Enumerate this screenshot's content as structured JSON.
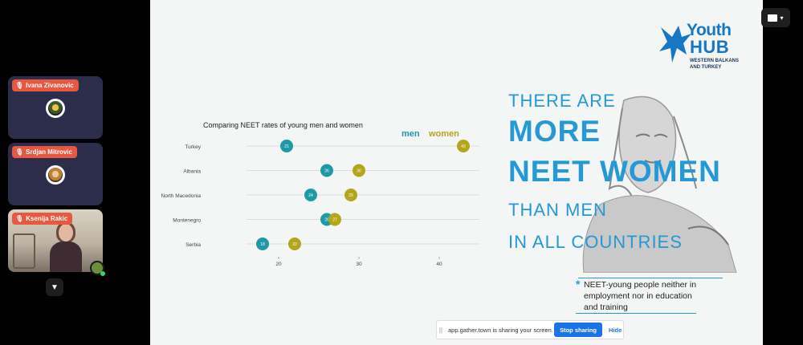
{
  "participants": [
    {
      "name": "Ivana Zivanovic",
      "type": "avatar"
    },
    {
      "name": "Srdjan Mitrovic",
      "type": "avatar"
    },
    {
      "name": "Ksenija Rakic",
      "type": "video"
    }
  ],
  "slide": {
    "logo": {
      "line1": "Youth",
      "line2": "HUB",
      "sub1": "WESTERN BALKANS",
      "sub2": "AND TURKEY"
    },
    "headline": {
      "l1": "THERE ARE",
      "l2": "MORE",
      "l3": "NEET WOMEN",
      "l4": "THAN MEN",
      "l5": "IN ALL COUNTRIES"
    },
    "note": "NEET-young people neither in employment nor in education and training",
    "note_marker": "*"
  },
  "chart_data": {
    "type": "dot",
    "title": "Comparing NEET rates of young men and women",
    "categories": [
      "Turkey",
      "Albania",
      "North Macedonia",
      "Montenegro",
      "Serbia"
    ],
    "series": [
      {
        "name": "men",
        "values": [
          21,
          26,
          24,
          26,
          18
        ],
        "color": "#1c9aa6"
      },
      {
        "name": "women",
        "values": [
          43,
          30,
          29,
          27,
          22
        ],
        "color": "#b3a61a"
      }
    ],
    "x_ticks": [
      "20",
      "30",
      "40"
    ],
    "xlim": [
      16,
      45
    ]
  },
  "share_bar": {
    "grip": "||",
    "message": "app.gather.town is sharing your screen.",
    "stop_label": "Stop sharing",
    "hide_label": "Hide"
  }
}
